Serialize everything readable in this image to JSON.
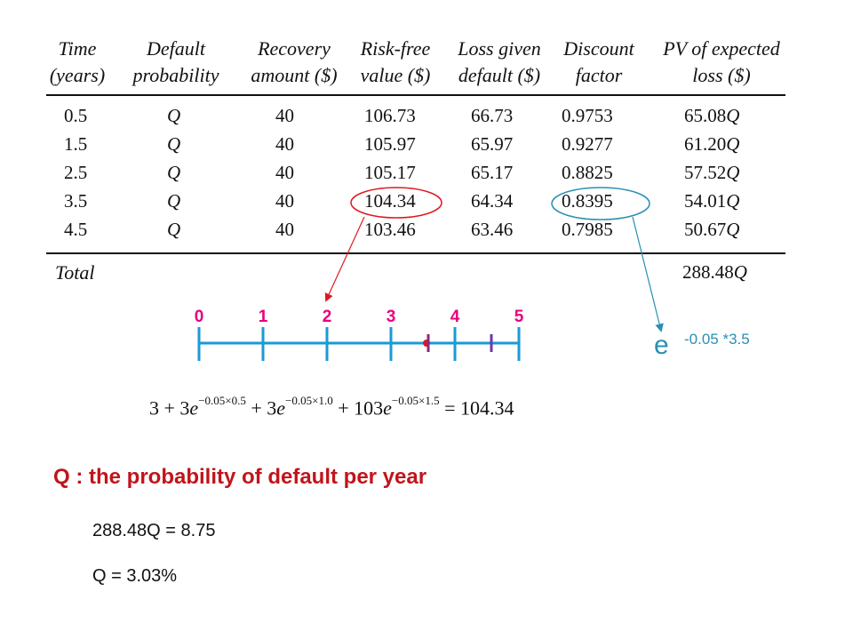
{
  "table": {
    "headers": [
      [
        "Time",
        "(years)"
      ],
      [
        "Default",
        "probability"
      ],
      [
        "Recovery",
        "amount ($)"
      ],
      [
        "Risk-free",
        "value ($)"
      ],
      [
        "Loss given",
        "default ($)"
      ],
      [
        "Discount",
        "factor"
      ],
      [
        "PV of expected",
        "loss ($)"
      ]
    ],
    "rows": [
      [
        "0.5",
        "Q",
        "40",
        "106.73",
        "66.73",
        "0.9753",
        "65.08"
      ],
      [
        "1.5",
        "Q",
        "40",
        "105.97",
        "65.97",
        "0.9277",
        "61.20"
      ],
      [
        "2.5",
        "Q",
        "40",
        "105.17",
        "65.17",
        "0.8825",
        "57.52"
      ],
      [
        "3.5",
        "Q",
        "40",
        "104.34",
        "64.34",
        "0.8395",
        "54.01"
      ],
      [
        "4.5",
        "Q",
        "40",
        "103.46",
        "63.46",
        "0.7985",
        "50.67"
      ]
    ],
    "q_suffix": "Q",
    "total_label": "Total",
    "total_value": "288.48",
    "total_suffix": "Q"
  },
  "timeline": {
    "labels": [
      "0",
      "1",
      "2",
      "3",
      "4",
      "5"
    ],
    "label_color": "#e6007e",
    "line_color": "#1a9ad6"
  },
  "annotation": {
    "base": "e",
    "exponent": "-0.05 *3.5",
    "color": "#2a8fb3"
  },
  "formula": {
    "t1": "3 + 3",
    "e1": "e",
    "x1": "−0.05×0.5",
    "t2": " + 3",
    "e2": "e",
    "x2": "−0.05×1.0",
    "t3": " + 103",
    "e3": "e",
    "x3": "−0.05×1.5",
    "t4": " = 104.34"
  },
  "definition": {
    "text": "Q : the probability of default per year",
    "line1": "288.48Q = 8.75",
    "line2": "Q = 3.03%",
    "color": "#c0151b"
  }
}
